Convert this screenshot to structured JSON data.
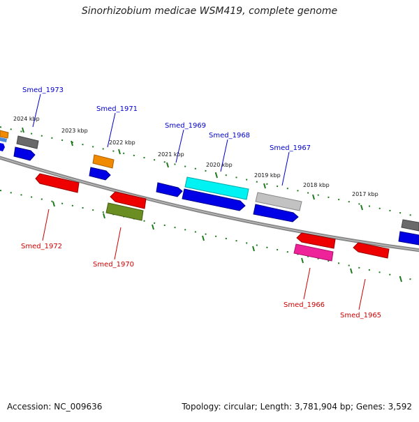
{
  "title": "Sinorhizobium medicae WSM419, complete genome",
  "footer": {
    "accession": "Accession: NC_009636",
    "topology": "Topology: circular; Length: 3,781,904 bp; Genes: 3,592"
  },
  "colors": {
    "axis": "#888888",
    "tick_dot": "#1e7a1e",
    "label_blue": "#0000cc",
    "label_red": "#cc0000",
    "kbp_text": "#111111"
  },
  "kbp_labels": [
    {
      "text": "2024 kbp"
    },
    {
      "text": "2023 kbp"
    },
    {
      "text": "2022 kbp"
    },
    {
      "text": "2021 kbp"
    },
    {
      "text": "2020 kbp"
    },
    {
      "text": "2019 kbp"
    },
    {
      "text": "2018 kbp"
    },
    {
      "text": "2017 kbp"
    }
  ],
  "gene_labels_top": [
    {
      "text": "Smed_1973"
    },
    {
      "text": "Smed_1971"
    },
    {
      "text": "Smed_1969"
    },
    {
      "text": "Smed_1968"
    },
    {
      "text": "Smed_1967"
    }
  ],
  "gene_labels_bottom": [
    {
      "text": "Smed_1972"
    },
    {
      "text": "Smed_1970"
    },
    {
      "text": "Smed_1966"
    },
    {
      "text": "Smed_1965"
    }
  ]
}
